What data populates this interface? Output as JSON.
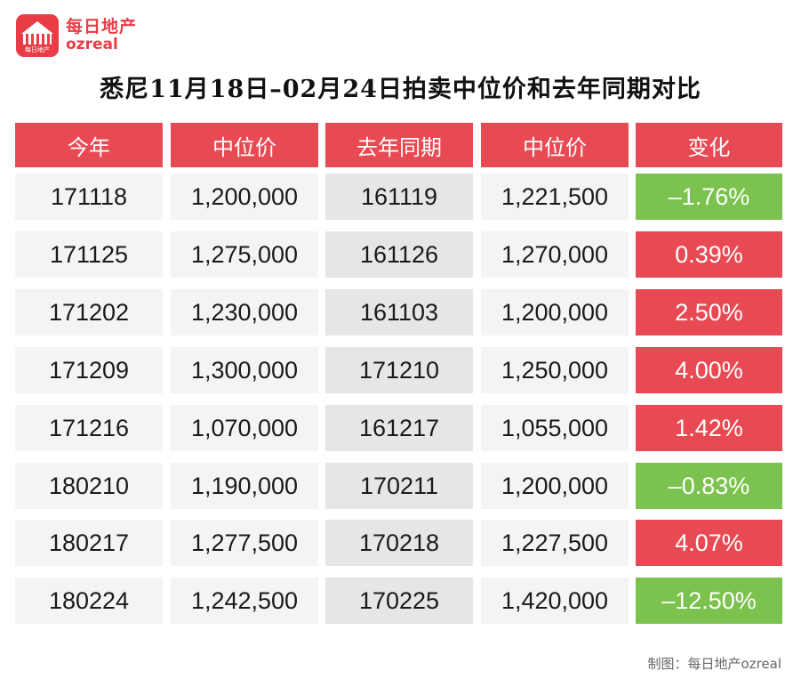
{
  "logo": {
    "cn": "每日地产",
    "en": "ozreal",
    "mini": "每日地产"
  },
  "title": "悉尼11月18日–02月24日拍卖中位价和去年同期对比",
  "colors": {
    "header": "#e84a54",
    "increase": "#e84a54",
    "decrease": "#7cc24f",
    "cell_light": "#f4f4f4",
    "cell_dark": "#e6e6e6"
  },
  "chart_data": {
    "type": "table",
    "columns": [
      "今年",
      "中位价",
      "去年同期",
      "中位价",
      "变化"
    ],
    "rows": [
      {
        "this_year": "171118",
        "median": "1,200,000",
        "last_year": "161119",
        "last_median": "1,221,500",
        "change": "–1.76%",
        "direction": "neg"
      },
      {
        "this_year": "171125",
        "median": "1,275,000",
        "last_year": "161126",
        "last_median": "1,270,000",
        "change": "0.39%",
        "direction": "pos"
      },
      {
        "this_year": "171202",
        "median": "1,230,000",
        "last_year": "161103",
        "last_median": "1,200,000",
        "change": "2.50%",
        "direction": "pos"
      },
      {
        "this_year": "171209",
        "median": "1,300,000",
        "last_year": "171210",
        "last_median": "1,250,000",
        "change": "4.00%",
        "direction": "pos"
      },
      {
        "this_year": "171216",
        "median": "1,070,000",
        "last_year": "161217",
        "last_median": "1,055,000",
        "change": "1.42%",
        "direction": "pos"
      },
      {
        "this_year": "180210",
        "median": "1,190,000",
        "last_year": "170211",
        "last_median": "1,200,000",
        "change": "–0.83%",
        "direction": "neg"
      },
      {
        "this_year": "180217",
        "median": "1,277,500",
        "last_year": "170218",
        "last_median": "1,227,500",
        "change": "4.07%",
        "direction": "pos"
      },
      {
        "this_year": "180224",
        "median": "1,242,500",
        "last_year": "170225",
        "last_median": "1,420,000",
        "change": "–12.50%",
        "direction": "neg"
      }
    ]
  },
  "footer": "制图：每日地产ozreal"
}
